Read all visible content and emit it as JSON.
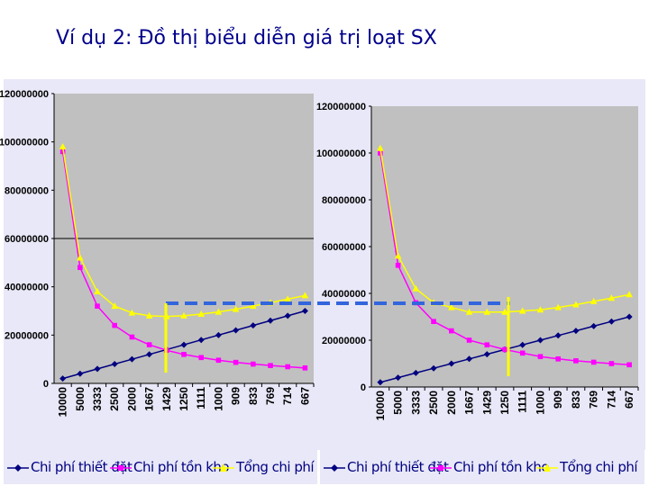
{
  "title": "Ví dụ 2: Đồ thị biểu diễn giá trị loạt SX",
  "chart_data": [
    {
      "type": "line",
      "title": "",
      "xlabel": "",
      "ylabel": "",
      "categories": [
        "10000",
        "5000",
        "3333",
        "2500",
        "2000",
        "1667",
        "1429",
        "1250",
        "1111",
        "1000",
        "909",
        "833",
        "769",
        "714",
        "667"
      ],
      "y_ticks": [
        "0",
        "20000000",
        "40000000",
        "60000000",
        "80000000",
        "100000000",
        "120000000"
      ],
      "ylim": [
        0,
        120000000
      ],
      "grid": false,
      "legend": "bottom",
      "series": [
        {
          "name": "Chi phí thiết đặt",
          "color": "#000080",
          "marker": "diamond",
          "values": [
            2000000,
            4000000,
            6000000,
            8000000,
            10000000,
            12000000,
            14000000,
            16000000,
            18000000,
            20000000,
            22000000,
            24000000,
            26000000,
            28000000,
            30000000
          ]
        },
        {
          "name": "Chi phí tồn kho",
          "color": "#ff00ff",
          "marker": "square",
          "values": [
            96000000,
            48000000,
            32000000,
            24000000,
            19200000,
            16000000,
            13700000,
            12000000,
            10700000,
            9600000,
            8700000,
            8000000,
            7400000,
            6900000,
            6400000
          ]
        },
        {
          "name": "Tổng chi phí",
          "color": "#ffff00",
          "marker": "triangle",
          "values": [
            98000000,
            52000000,
            38000000,
            32000000,
            29200000,
            28000000,
            27700000,
            28000000,
            28700000,
            29600000,
            30700000,
            32000000,
            33400000,
            34900000,
            36400000
          ]
        }
      ],
      "horizontal_line": 60000000
    },
    {
      "type": "line",
      "title": "",
      "xlabel": "",
      "ylabel": "",
      "categories": [
        "10000",
        "5000",
        "3333",
        "2500",
        "2000",
        "1667",
        "1429",
        "1250",
        "1111",
        "1000",
        "909",
        "833",
        "769",
        "714",
        "667"
      ],
      "y_ticks": [
        "0",
        "20000000",
        "40000000",
        "60000000",
        "80000000",
        "100000000",
        "120000000"
      ],
      "ylim": [
        0,
        120000000
      ],
      "grid": false,
      "legend": "bottom",
      "series": [
        {
          "name": "Chi phí thiết đặt",
          "color": "#000080",
          "marker": "diamond",
          "values": [
            2000000,
            4000000,
            6000000,
            8000000,
            10000000,
            12000000,
            14000000,
            16000000,
            18000000,
            20000000,
            22000000,
            24000000,
            26000000,
            28000000,
            30000000
          ]
        },
        {
          "name": "Chi phí tồn kho",
          "color": "#ff00ff",
          "marker": "square",
          "values": [
            100000000,
            52000000,
            36000000,
            28000000,
            24000000,
            20000000,
            18000000,
            16000000,
            14500000,
            13000000,
            12000000,
            11200000,
            10600000,
            10000000,
            9500000
          ]
        },
        {
          "name": "Tổng chi phí",
          "color": "#ffff00",
          "marker": "triangle",
          "values": [
            102000000,
            56000000,
            42000000,
            36000000,
            34000000,
            32000000,
            32000000,
            32000000,
            32500000,
            33000000,
            34000000,
            35200000,
            36600000,
            38000000,
            39500000
          ]
        }
      ]
    }
  ]
}
